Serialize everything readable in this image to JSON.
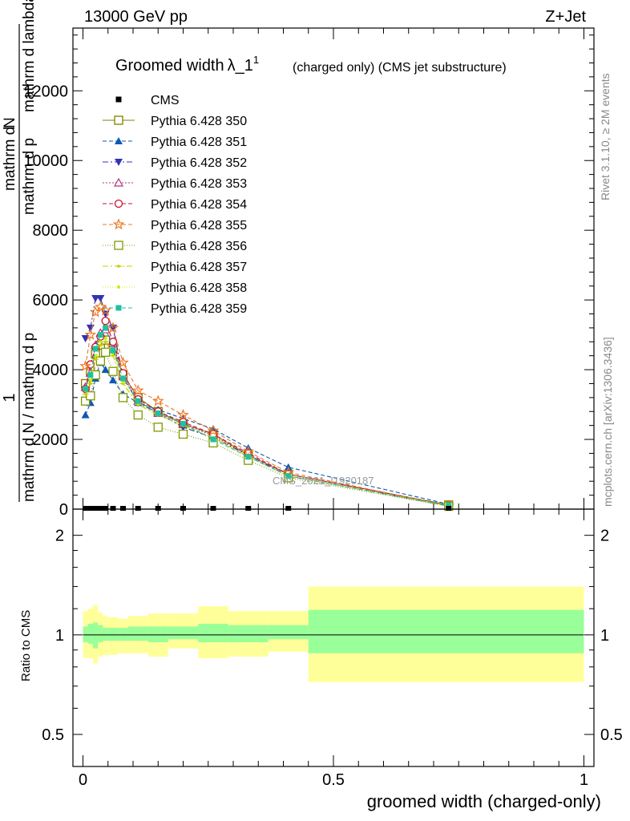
{
  "header": {
    "left": "13000 GeV pp",
    "right": "Z+Jet"
  },
  "side": {
    "rivet": "Rivet 3.1.10, ≥ 2M events",
    "mcplots": "mcplots.cern.ch [arXiv:1306.3436]"
  },
  "watermark": "CMS_2021_I1920187",
  "colors": {
    "band_outer": "#ffff99",
    "band_inner": "#99ff99",
    "data": "#000000"
  },
  "chart_data": [
    {
      "id": "main",
      "type": "line",
      "title": "Groomed width",
      "title_math": "λ_1",
      "title_sup": "1",
      "title_note": "(charged only) (CMS jet substructure)",
      "ylabel_num_top": "1",
      "ylabel_num_bottom": "mathrm d N / mathrm d p",
      "ylabel_den_top": "mathrm d",
      "ylabel_den_mid": "N",
      "ylabel_den_bottom": "mathrm d p",
      "ylabel_den_tail": "mathrm d lambda",
      "ylim": [
        0,
        13800
      ],
      "xlim": [
        -0.02,
        1.02
      ],
      "yticks": [
        0,
        2000,
        4000,
        6000,
        8000,
        10000,
        12000
      ],
      "ytick_labels": [
        "0",
        "2000",
        "4000",
        "6000",
        "8000",
        "10000",
        "12000"
      ],
      "legend_position": "top-left",
      "data_series": {
        "name": "CMS",
        "x": [
          0.005,
          0.015,
          0.025,
          0.035,
          0.045,
          0.06,
          0.08,
          0.11,
          0.15,
          0.2,
          0.26,
          0.33,
          0.41,
          0.73
        ],
        "y": [
          0,
          0,
          0,
          0,
          0,
          0,
          0,
          0,
          0,
          0,
          0,
          0,
          0,
          0
        ]
      },
      "series": [
        {
          "name": "Pythia 6.428 350",
          "color": "#808000",
          "marker": "square-open",
          "dash": "",
          "x": [
            0.005,
            0.015,
            0.025,
            0.035,
            0.045,
            0.06,
            0.08,
            0.11,
            0.15,
            0.2,
            0.26,
            0.33,
            0.41,
            0.73
          ],
          "y": [
            3600,
            3950,
            4450,
            4700,
            4850,
            4600,
            3850,
            3200,
            2800,
            2450,
            2150,
            1550,
            1000,
            120
          ]
        },
        {
          "name": "Pythia 6.428 351",
          "color": "#0d59b2",
          "marker": "triangle-up",
          "dash": "5,3",
          "x": [
            0.005,
            0.015,
            0.025,
            0.035,
            0.045,
            0.06,
            0.08,
            0.11,
            0.15,
            0.2,
            0.26,
            0.33,
            0.41,
            0.73
          ],
          "y": [
            2700,
            3050,
            3750,
            4200,
            4000,
            3700,
            3300,
            3050,
            2850,
            2600,
            2300,
            1750,
            1200,
            140
          ]
        },
        {
          "name": "Pythia 6.428 352",
          "color": "#3333b3",
          "marker": "triangle-down",
          "dash": "7,3,2,3",
          "x": [
            0.005,
            0.015,
            0.025,
            0.035,
            0.045,
            0.06,
            0.08,
            0.11,
            0.15,
            0.2,
            0.26,
            0.33,
            0.41,
            0.73
          ],
          "y": [
            4900,
            5200,
            6050,
            6050,
            5600,
            5200,
            3800,
            3050,
            2750,
            2350,
            2050,
            1550,
            950,
            90
          ]
        },
        {
          "name": "Pythia 6.428 353",
          "color": "#b3337f",
          "marker": "triangle-up-open",
          "dash": "2,2",
          "x": [
            0.005,
            0.015,
            0.025,
            0.035,
            0.045,
            0.06,
            0.08,
            0.11,
            0.15,
            0.2,
            0.26,
            0.33,
            0.41,
            0.73
          ],
          "y": [
            3500,
            3900,
            4700,
            5050,
            5150,
            4750,
            3800,
            3100,
            2750,
            2450,
            2100,
            1550,
            1000,
            110
          ]
        },
        {
          "name": "Pythia 6.428 354",
          "color": "#cc0d33",
          "marker": "circle-open",
          "dash": "5,3",
          "x": [
            0.005,
            0.015,
            0.025,
            0.035,
            0.045,
            0.06,
            0.08,
            0.11,
            0.15,
            0.2,
            0.26,
            0.33,
            0.41,
            0.73
          ],
          "y": [
            3450,
            4150,
            4650,
            4950,
            5400,
            4800,
            3900,
            3150,
            2800,
            2500,
            2150,
            1600,
            1000,
            110
          ]
        },
        {
          "name": "Pythia 6.428 355",
          "color": "#ee7722",
          "marker": "star-open",
          "dash": "5,3",
          "x": [
            0.005,
            0.015,
            0.025,
            0.035,
            0.045,
            0.06,
            0.08,
            0.11,
            0.15,
            0.2,
            0.26,
            0.33,
            0.41,
            0.73
          ],
          "y": [
            4100,
            5000,
            5650,
            5800,
            5700,
            5200,
            4200,
            3400,
            3100,
            2700,
            2250,
            1650,
            1050,
            100
          ]
        },
        {
          "name": "Pythia 6.428 356",
          "color": "#7f9900",
          "marker": "square-open",
          "dash": "1,2",
          "x": [
            0.005,
            0.015,
            0.025,
            0.035,
            0.045,
            0.06,
            0.08,
            0.11,
            0.15,
            0.2,
            0.26,
            0.33,
            0.41,
            0.73
          ],
          "y": [
            3100,
            3250,
            3850,
            4250,
            4500,
            3950,
            3200,
            2700,
            2350,
            2150,
            1900,
            1400,
            900,
            80
          ]
        },
        {
          "name": "Pythia 6.428 357",
          "color": "#cccc00",
          "marker": "line-dot",
          "dash": "7,3,2,3",
          "x": [
            0.005,
            0.015,
            0.025,
            0.035,
            0.045,
            0.06,
            0.08,
            0.11,
            0.15,
            0.2,
            0.26,
            0.33,
            0.41,
            0.73
          ],
          "y": [
            3300,
            3600,
            4300,
            4700,
            4800,
            4400,
            3600,
            3000,
            2700,
            2400,
            2050,
            1500,
            950,
            100
          ]
        },
        {
          "name": "Pythia 6.428 358",
          "color": "#ccee00",
          "marker": "dot",
          "dash": "1,2",
          "x": [
            0.005,
            0.015,
            0.025,
            0.035,
            0.045,
            0.06,
            0.08,
            0.11,
            0.15,
            0.2,
            0.26,
            0.33,
            0.41,
            0.73
          ],
          "y": [
            3400,
            3700,
            4400,
            4800,
            4900,
            4450,
            3650,
            3050,
            2700,
            2400,
            2050,
            1500,
            950,
            100
          ]
        },
        {
          "name": "Pythia 6.428 359",
          "color": "#20c0a0",
          "marker": "square",
          "dash": "5,3",
          "x": [
            0.005,
            0.015,
            0.025,
            0.035,
            0.045,
            0.06,
            0.08,
            0.11,
            0.15,
            0.2,
            0.26,
            0.33,
            0.41,
            0.73
          ],
          "y": [
            3450,
            3850,
            4600,
            5000,
            5200,
            4550,
            3750,
            3100,
            2750,
            2450,
            2000,
            1500,
            950,
            100
          ]
        }
      ]
    },
    {
      "id": "ratio",
      "type": "area",
      "ylabel": "Ratio to CMS",
      "xlabel": "groomed width (charged-only)",
      "scale": "log",
      "ylim": [
        0.4,
        2.4
      ],
      "xlim": [
        -0.02,
        1.02
      ],
      "xticks": [
        0,
        0.5,
        1
      ],
      "xtick_labels": [
        "0",
        "0.5",
        "1"
      ],
      "yticks": [
        0.5,
        1,
        2
      ],
      "ytick_labels": [
        "0.5",
        "1",
        "2"
      ],
      "bands": {
        "edges": [
          0.0,
          0.01,
          0.02,
          0.03,
          0.04,
          0.05,
          0.07,
          0.09,
          0.13,
          0.17,
          0.23,
          0.29,
          0.37,
          0.45,
          1.0
        ],
        "outer_lo": [
          0.85,
          0.85,
          0.82,
          0.86,
          0.87,
          0.87,
          0.88,
          0.88,
          0.86,
          0.91,
          0.85,
          0.86,
          0.89,
          0.72
        ],
        "outer_hi": [
          1.18,
          1.2,
          1.23,
          1.17,
          1.14,
          1.13,
          1.12,
          1.14,
          1.16,
          1.16,
          1.22,
          1.18,
          1.18,
          1.4
        ],
        "inner_lo": [
          0.95,
          0.94,
          0.91,
          0.95,
          0.96,
          0.96,
          0.96,
          0.96,
          0.95,
          0.97,
          0.95,
          0.95,
          0.97,
          0.88
        ],
        "inner_hi": [
          1.06,
          1.08,
          1.09,
          1.07,
          1.05,
          1.05,
          1.05,
          1.06,
          1.06,
          1.06,
          1.08,
          1.07,
          1.07,
          1.19
        ]
      },
      "reference": 1
    }
  ]
}
